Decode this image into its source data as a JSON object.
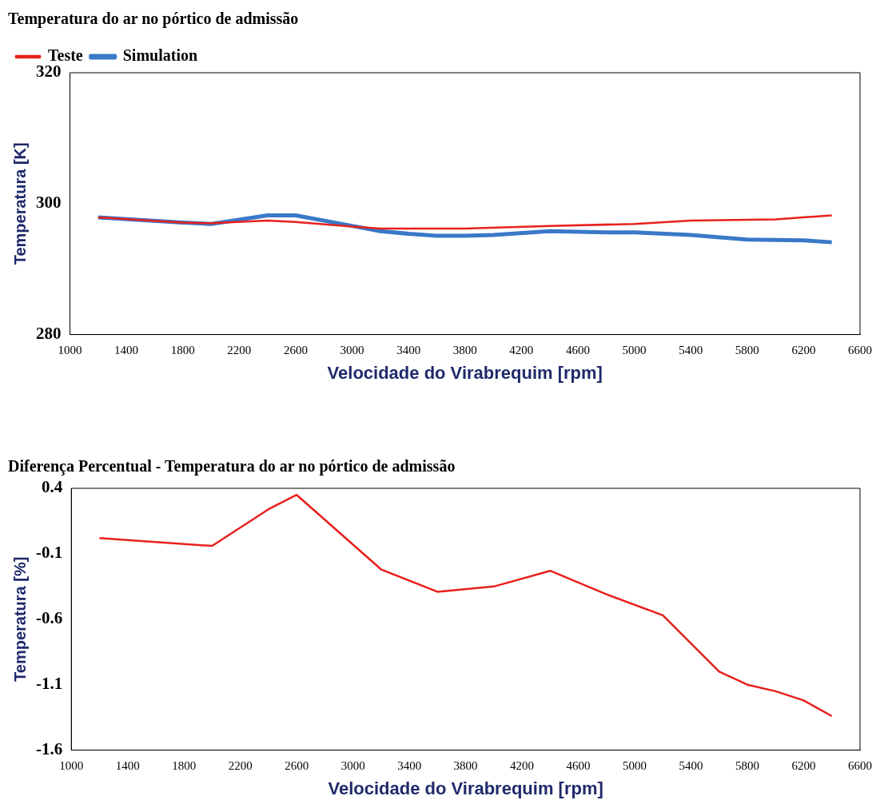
{
  "chart_data": [
    {
      "type": "line",
      "title": "Temperatura do ar no pórtico de admissão",
      "xlabel": "Velocidade do Virabrequim [rpm]",
      "ylabel": "Temperatura [K]",
      "legend": "top left",
      "grid": false,
      "marker": "none",
      "line_style": "solid",
      "xlim": [
        1000,
        6600
      ],
      "xticks": [
        1000,
        1400,
        1800,
        2200,
        2600,
        3000,
        3400,
        3800,
        4200,
        4600,
        5000,
        5400,
        5800,
        6200,
        6600
      ],
      "ylim": [
        280,
        320
      ],
      "yticks": [
        280,
        300,
        320
      ],
      "series": [
        {
          "name": "Teste",
          "color": "#e8201c",
          "x": [
            1200,
            1800,
            2000,
            2400,
            2600,
            3000,
            3200,
            3800,
            4400,
            5000,
            5400,
            6000,
            6400
          ],
          "values": [
            297.9,
            297.1,
            297.0,
            297.4,
            297.2,
            296.5,
            296.2,
            296.2,
            296.6,
            296.9,
            297.4,
            297.6,
            298.2
          ]
        },
        {
          "name": "Simulation",
          "color": "#3a78c8",
          "x": [
            1200,
            1800,
            2000,
            2400,
            2600,
            3000,
            3200,
            3400,
            3600,
            3800,
            4000,
            4400,
            4800,
            5000,
            5400,
            5800,
            6200,
            6400
          ],
          "values": [
            297.9,
            297.1,
            296.9,
            298.2,
            298.2,
            296.6,
            295.8,
            295.4,
            295.1,
            295.1,
            295.2,
            295.8,
            295.6,
            295.6,
            295.2,
            294.5,
            294.4,
            294.1
          ]
        }
      ]
    },
    {
      "type": "line",
      "title": "Diferença Percentual - Temperatura do ar no pórtico de admissão",
      "xlabel": "Velocidade do Virabrequim [rpm]",
      "ylabel": "Temperatura [%]",
      "legend": false,
      "grid": false,
      "marker": "none",
      "line_style": "solid",
      "xlim": [
        1000,
        6600
      ],
      "xticks": [
        1000,
        1400,
        1800,
        2200,
        2600,
        3000,
        3400,
        3800,
        4200,
        4600,
        5000,
        5400,
        5800,
        6200,
        6600
      ],
      "ylim": [
        -1.6,
        0.4
      ],
      "yticks": [
        -1.6,
        -1.1,
        -0.6,
        -0.1,
        0.4
      ],
      "series": [
        {
          "color": "#e8201c",
          "x": [
            1200,
            1600,
            2000,
            2400,
            2600,
            3200,
            3600,
            4000,
            4400,
            4800,
            5200,
            5600,
            5800,
            6000,
            6200,
            6400
          ],
          "values": [
            0.02,
            -0.01,
            -0.04,
            0.24,
            0.35,
            -0.22,
            -0.39,
            -0.35,
            -0.23,
            -0.41,
            -0.57,
            -1.0,
            -1.1,
            -1.15,
            -1.22,
            -1.34
          ]
        }
      ]
    }
  ]
}
